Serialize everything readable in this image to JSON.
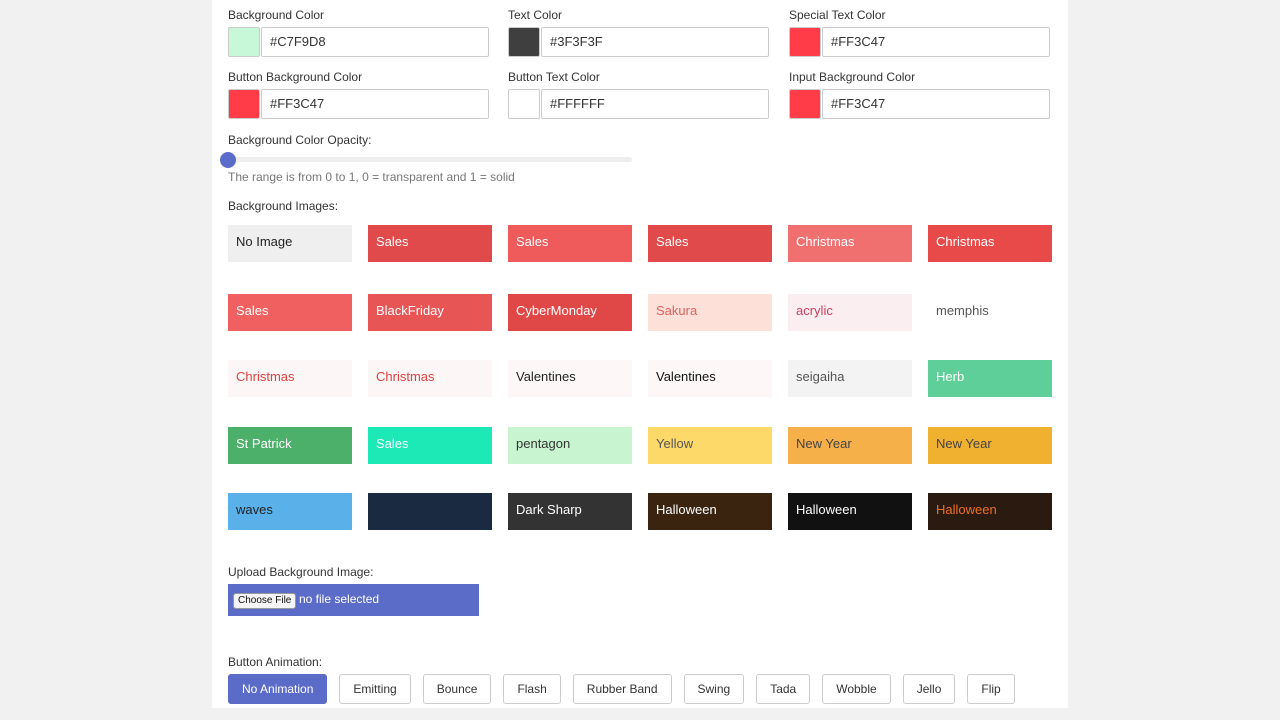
{
  "color_fields": [
    {
      "label": "Background Color",
      "value": "#C7F9D8"
    },
    {
      "label": "Text Color",
      "value": "#3F3F3F"
    },
    {
      "label": "Special Text Color",
      "value": "#FF3C47"
    },
    {
      "label": "Button Background Color",
      "value": "#FF3C47"
    },
    {
      "label": "Button Text Color",
      "value": "#FFFFFF"
    },
    {
      "label": "Input Background Color",
      "value": "#FF3C47"
    }
  ],
  "opacity": {
    "label": "Background Color Opacity:",
    "hint": "The range is from 0 to 1, 0 = transparent and 1 = solid"
  },
  "images": {
    "label": "Background Images:",
    "tiles": [
      {
        "label": "No Image",
        "color": "#efefef",
        "text_color": "#222222"
      },
      {
        "label": "Sales",
        "color": "#e04a4a",
        "text_color": "#ffffff"
      },
      {
        "label": "Sales",
        "color": "#ef5a5a",
        "text_color": "#ffffff"
      },
      {
        "label": "Sales",
        "color": "#e04a4a",
        "text_color": "#ffffff"
      },
      {
        "label": "Christmas",
        "color": "#f07070",
        "text_color": "#ffffff"
      },
      {
        "label": "Christmas",
        "color": "#e84a4a",
        "text_color": "#ffffff"
      },
      {
        "label": "Sales",
        "color": "#f06060",
        "text_color": "#ffffff"
      },
      {
        "label": "BlackFriday",
        "color": "#e85555",
        "text_color": "#ffffff"
      },
      {
        "label": "CyberMonday",
        "color": "#e04848",
        "text_color": "#ffffff"
      },
      {
        "label": "Sakura",
        "color": "#fde0d8",
        "text_color": "#e06060"
      },
      {
        "label": "acrylic",
        "color": "#fbeef0",
        "text_color": "#d04060"
      },
      {
        "label": "memphis",
        "color": "#ffffff",
        "text_color": "#555555"
      },
      {
        "label": "Christmas",
        "color": "#fdf6f6",
        "text_color": "#e04040"
      },
      {
        "label": "Christmas",
        "color": "#fdf6f6",
        "text_color": "#e04040"
      },
      {
        "label": "Valentines",
        "color": "#fdf7f8",
        "text_color": "#222222"
      },
      {
        "label": "Valentines",
        "color": "#fdf7f8",
        "text_color": "#111111"
      },
      {
        "label": "seigaiha",
        "color": "#f3f3f3",
        "text_color": "#555555"
      },
      {
        "label": "Herb",
        "color": "#5fcf9a",
        "text_color": "#ffffff"
      },
      {
        "label": "St Patrick",
        "color": "#4caf6a",
        "text_color": "#ffffff"
      },
      {
        "label": "Sales",
        "color": "#1de9b6",
        "text_color": "#ffffff"
      },
      {
        "label": "pentagon",
        "color": "#c8f5d0",
        "text_color": "#333333"
      },
      {
        "label": "Yellow",
        "color": "#fdd96a",
        "text_color": "#555555"
      },
      {
        "label": "New Year",
        "color": "#f5b04a",
        "text_color": "#444444"
      },
      {
        "label": "New Year",
        "color": "#f0b030",
        "text_color": "#444444"
      },
      {
        "label": "waves",
        "color": "#5ab0e8",
        "text_color": "#222222"
      },
      {
        "label": null,
        "color": "#1a2a40",
        "text_color": "#ffffff"
      },
      {
        "label": "Dark Sharp",
        "color": "#333333",
        "text_color": "#ffffff"
      },
      {
        "label": "Halloween",
        "color": "#3a2410",
        "text_color": "#ffffff"
      },
      {
        "label": "Halloween",
        "color": "#111111",
        "text_color": "#ffffff"
      },
      {
        "label": "Halloween",
        "color": "#2a1a10",
        "text_color": "#f07020"
      }
    ]
  },
  "upload": {
    "label": "Upload Background Image:",
    "button": "Choose File",
    "status": "no file selected"
  },
  "animation": {
    "label": "Button Animation:",
    "selected": 0,
    "options": [
      "No Animation",
      "Emitting",
      "Bounce",
      "Flash",
      "Rubber Band",
      "Swing",
      "Tada",
      "Wobble",
      "Jello",
      "Flip"
    ]
  }
}
